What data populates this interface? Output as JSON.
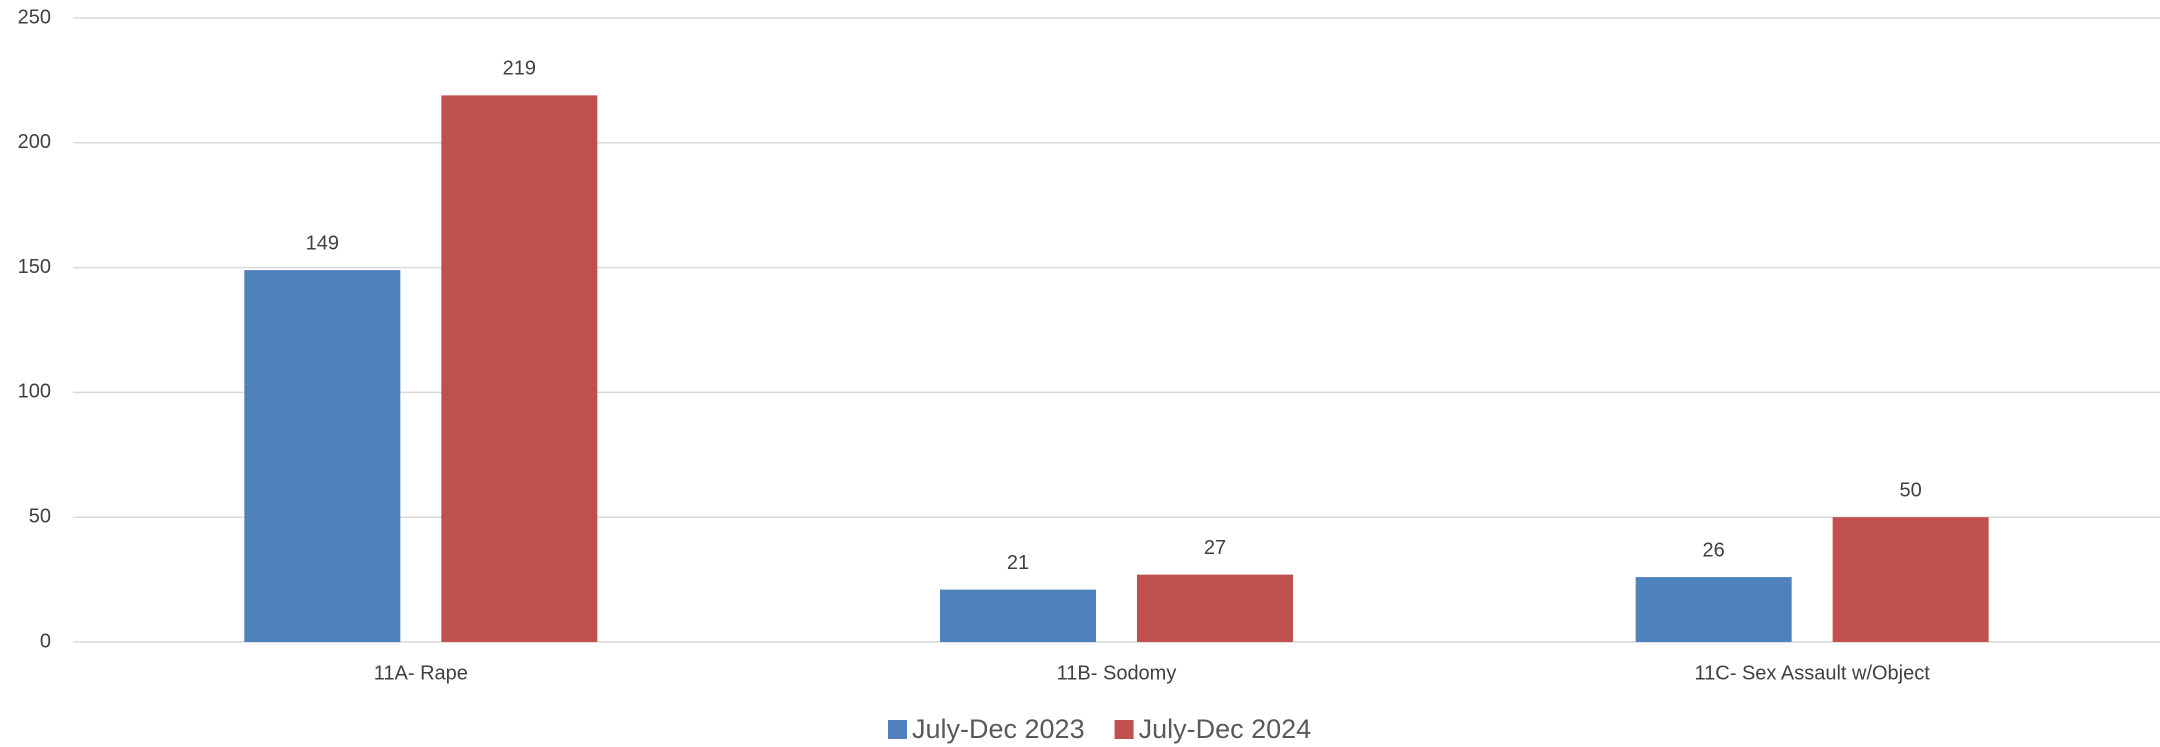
{
  "chart_data": {
    "type": "bar",
    "categories": [
      "11A- Rape",
      "11B- Sodomy",
      "11C- Sex Assault w/Object"
    ],
    "series": [
      {
        "name": "July-Dec 2023",
        "color": "#4f81bd",
        "values": [
          149,
          21,
          26
        ]
      },
      {
        "name": "July-Dec 2024",
        "color": "#c0504d",
        "values": [
          219,
          27,
          50
        ]
      }
    ],
    "ylim": [
      0,
      250
    ],
    "yticks": [
      0,
      50,
      100,
      150,
      200,
      250
    ],
    "grid": true,
    "legend": "bottom"
  }
}
